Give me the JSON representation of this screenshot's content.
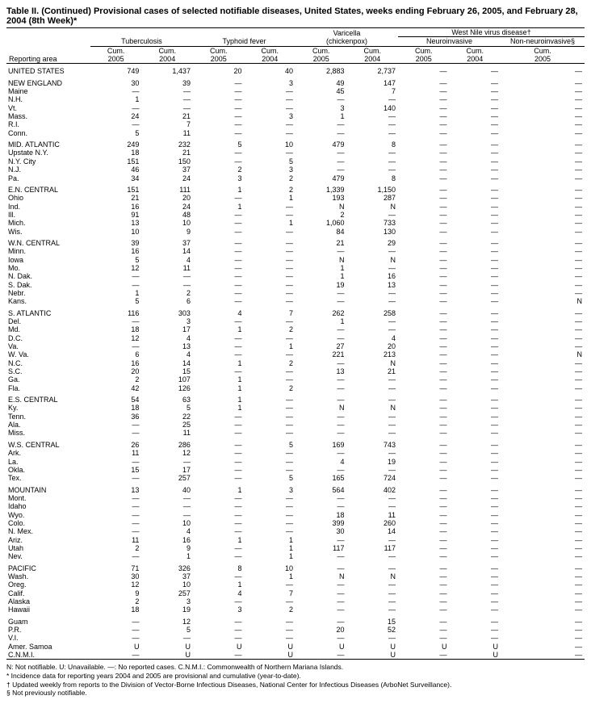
{
  "title": "Table II. (Continued) Provisional cases of selected notifiable diseases, United States, weeks ending February 26, 2005, and February 28, 2004 (8th Week)*",
  "header": {
    "groups": [
      "Tuberculosis",
      "Typhoid fever",
      "Varicella (chickenpox)",
      "West Nile virus disease†"
    ],
    "wnv_sub": [
      "Neuroinvasive",
      "Non-neuroinvasive§"
    ],
    "cols": [
      "Cum. 2005",
      "Cum. 2004",
      "Cum. 2005",
      "Cum. 2004",
      "Cum. 2005",
      "Cum. 2004",
      "Cum. 2005",
      "Cum. 2004",
      "Cum. 2005"
    ],
    "rowhead": "Reporting area"
  },
  "rows": [
    {
      "g": 1,
      "lbl": "UNITED STATES",
      "v": [
        "749",
        "1,437",
        "20",
        "40",
        "2,883",
        "2,737",
        "—",
        "—",
        "—"
      ]
    },
    {
      "g": 1,
      "lbl": "NEW ENGLAND",
      "v": [
        "30",
        "39",
        "—",
        "3",
        "49",
        "147",
        "—",
        "—",
        "—"
      ]
    },
    {
      "lbl": "Maine",
      "v": [
        "—",
        "—",
        "—",
        "—",
        "45",
        "7",
        "—",
        "—",
        "—"
      ]
    },
    {
      "lbl": "N.H.",
      "v": [
        "1",
        "—",
        "—",
        "—",
        "—",
        "—",
        "—",
        "—",
        "—"
      ]
    },
    {
      "lbl": "Vt.",
      "v": [
        "—",
        "—",
        "—",
        "—",
        "3",
        "140",
        "—",
        "—",
        "—"
      ]
    },
    {
      "lbl": "Mass.",
      "v": [
        "24",
        "21",
        "—",
        "3",
        "1",
        "—",
        "—",
        "—",
        "—"
      ]
    },
    {
      "lbl": "R.I.",
      "v": [
        "—",
        "7",
        "—",
        "—",
        "—",
        "—",
        "—",
        "—",
        "—"
      ]
    },
    {
      "lbl": "Conn.",
      "v": [
        "5",
        "11",
        "—",
        "—",
        "—",
        "—",
        "—",
        "—",
        "—"
      ]
    },
    {
      "g": 1,
      "lbl": "MID. ATLANTIC",
      "v": [
        "249",
        "232",
        "5",
        "10",
        "479",
        "8",
        "—",
        "—",
        "—"
      ]
    },
    {
      "lbl": "Upstate N.Y.",
      "v": [
        "18",
        "21",
        "—",
        "—",
        "—",
        "—",
        "—",
        "—",
        "—"
      ]
    },
    {
      "lbl": "N.Y. City",
      "v": [
        "151",
        "150",
        "—",
        "5",
        "—",
        "—",
        "—",
        "—",
        "—"
      ]
    },
    {
      "lbl": "N.J.",
      "v": [
        "46",
        "37",
        "2",
        "3",
        "—",
        "—",
        "—",
        "—",
        "—"
      ]
    },
    {
      "lbl": "Pa.",
      "v": [
        "34",
        "24",
        "3",
        "2",
        "479",
        "8",
        "—",
        "—",
        "—"
      ]
    },
    {
      "g": 1,
      "lbl": "E.N. CENTRAL",
      "v": [
        "151",
        "111",
        "1",
        "2",
        "1,339",
        "1,150",
        "—",
        "—",
        "—"
      ]
    },
    {
      "lbl": "Ohio",
      "v": [
        "21",
        "20",
        "—",
        "1",
        "193",
        "287",
        "—",
        "—",
        "—"
      ]
    },
    {
      "lbl": "Ind.",
      "v": [
        "16",
        "24",
        "1",
        "—",
        "N",
        "N",
        "—",
        "—",
        "—"
      ]
    },
    {
      "lbl": "Ill.",
      "v": [
        "91",
        "48",
        "—",
        "—",
        "2",
        "—",
        "—",
        "—",
        "—"
      ]
    },
    {
      "lbl": "Mich.",
      "v": [
        "13",
        "10",
        "—",
        "1",
        "1,060",
        "733",
        "—",
        "—",
        "—"
      ]
    },
    {
      "lbl": "Wis.",
      "v": [
        "10",
        "9",
        "—",
        "—",
        "84",
        "130",
        "—",
        "—",
        "—"
      ]
    },
    {
      "g": 1,
      "lbl": "W.N. CENTRAL",
      "v": [
        "39",
        "37",
        "—",
        "—",
        "21",
        "29",
        "—",
        "—",
        "—"
      ]
    },
    {
      "lbl": "Minn.",
      "v": [
        "16",
        "14",
        "—",
        "—",
        "—",
        "—",
        "—",
        "—",
        "—"
      ]
    },
    {
      "lbl": "Iowa",
      "v": [
        "5",
        "4",
        "—",
        "—",
        "N",
        "N",
        "—",
        "—",
        "—"
      ]
    },
    {
      "lbl": "Mo.",
      "v": [
        "12",
        "11",
        "—",
        "—",
        "1",
        "—",
        "—",
        "—",
        "—"
      ]
    },
    {
      "lbl": "N. Dak.",
      "v": [
        "—",
        "—",
        "—",
        "—",
        "1",
        "16",
        "—",
        "—",
        "—"
      ]
    },
    {
      "lbl": "S. Dak.",
      "v": [
        "—",
        "—",
        "—",
        "—",
        "19",
        "13",
        "—",
        "—",
        "—"
      ]
    },
    {
      "lbl": "Nebr.",
      "v": [
        "1",
        "2",
        "—",
        "—",
        "—",
        "—",
        "—",
        "—",
        "—"
      ]
    },
    {
      "lbl": "Kans.",
      "v": [
        "5",
        "6",
        "—",
        "—",
        "—",
        "—",
        "—",
        "—",
        "N"
      ]
    },
    {
      "g": 1,
      "lbl": "S. ATLANTIC",
      "v": [
        "116",
        "303",
        "4",
        "7",
        "262",
        "258",
        "—",
        "—",
        "—"
      ]
    },
    {
      "lbl": "Del.",
      "v": [
        "—",
        "3",
        "—",
        "—",
        "1",
        "—",
        "—",
        "—",
        "—"
      ]
    },
    {
      "lbl": "Md.",
      "v": [
        "18",
        "17",
        "1",
        "2",
        "—",
        "—",
        "—",
        "—",
        "—"
      ]
    },
    {
      "lbl": "D.C.",
      "v": [
        "12",
        "4",
        "—",
        "—",
        "—",
        "4",
        "—",
        "—",
        "—"
      ]
    },
    {
      "lbl": "Va.",
      "v": [
        "—",
        "13",
        "—",
        "1",
        "27",
        "20",
        "—",
        "—",
        "—"
      ]
    },
    {
      "lbl": "W. Va.",
      "v": [
        "6",
        "4",
        "—",
        "—",
        "221",
        "213",
        "—",
        "—",
        "N"
      ]
    },
    {
      "lbl": "N.C.",
      "v": [
        "16",
        "14",
        "1",
        "2",
        "—",
        "N",
        "—",
        "—",
        "—"
      ]
    },
    {
      "lbl": "S.C.",
      "v": [
        "20",
        "15",
        "—",
        "—",
        "13",
        "21",
        "—",
        "—",
        "—"
      ]
    },
    {
      "lbl": "Ga.",
      "v": [
        "2",
        "107",
        "1",
        "—",
        "—",
        "—",
        "—",
        "—",
        "—"
      ]
    },
    {
      "lbl": "Fla.",
      "v": [
        "42",
        "126",
        "1",
        "2",
        "—",
        "—",
        "—",
        "—",
        "—"
      ]
    },
    {
      "g": 1,
      "lbl": "E.S. CENTRAL",
      "v": [
        "54",
        "63",
        "1",
        "—",
        "—",
        "—",
        "—",
        "—",
        "—"
      ]
    },
    {
      "lbl": "Ky.",
      "v": [
        "18",
        "5",
        "1",
        "—",
        "N",
        "N",
        "—",
        "—",
        "—"
      ]
    },
    {
      "lbl": "Tenn.",
      "v": [
        "36",
        "22",
        "—",
        "—",
        "—",
        "—",
        "—",
        "—",
        "—"
      ]
    },
    {
      "lbl": "Ala.",
      "v": [
        "—",
        "25",
        "—",
        "—",
        "—",
        "—",
        "—",
        "—",
        "—"
      ]
    },
    {
      "lbl": "Miss.",
      "v": [
        "—",
        "11",
        "—",
        "—",
        "—",
        "—",
        "—",
        "—",
        "—"
      ]
    },
    {
      "g": 1,
      "lbl": "W.S. CENTRAL",
      "v": [
        "26",
        "286",
        "—",
        "5",
        "169",
        "743",
        "—",
        "—",
        "—"
      ]
    },
    {
      "lbl": "Ark.",
      "v": [
        "11",
        "12",
        "—",
        "—",
        "—",
        "—",
        "—",
        "—",
        "—"
      ]
    },
    {
      "lbl": "La.",
      "v": [
        "—",
        "—",
        "—",
        "—",
        "4",
        "19",
        "—",
        "—",
        "—"
      ]
    },
    {
      "lbl": "Okla.",
      "v": [
        "15",
        "17",
        "—",
        "—",
        "—",
        "—",
        "—",
        "—",
        "—"
      ]
    },
    {
      "lbl": "Tex.",
      "v": [
        "—",
        "257",
        "—",
        "5",
        "165",
        "724",
        "—",
        "—",
        "—"
      ]
    },
    {
      "g": 1,
      "lbl": "MOUNTAIN",
      "v": [
        "13",
        "40",
        "1",
        "3",
        "564",
        "402",
        "—",
        "—",
        "—"
      ]
    },
    {
      "lbl": "Mont.",
      "v": [
        "—",
        "—",
        "—",
        "—",
        "—",
        "—",
        "—",
        "—",
        "—"
      ]
    },
    {
      "lbl": "Idaho",
      "v": [
        "—",
        "—",
        "—",
        "—",
        "—",
        "—",
        "—",
        "—",
        "—"
      ]
    },
    {
      "lbl": "Wyo.",
      "v": [
        "—",
        "—",
        "—",
        "—",
        "18",
        "11",
        "—",
        "—",
        "—"
      ]
    },
    {
      "lbl": "Colo.",
      "v": [
        "—",
        "10",
        "—",
        "—",
        "399",
        "260",
        "—",
        "—",
        "—"
      ]
    },
    {
      "lbl": "N. Mex.",
      "v": [
        "—",
        "4",
        "—",
        "—",
        "30",
        "14",
        "—",
        "—",
        "—"
      ]
    },
    {
      "lbl": "Ariz.",
      "v": [
        "11",
        "16",
        "1",
        "1",
        "—",
        "—",
        "—",
        "—",
        "—"
      ]
    },
    {
      "lbl": "Utah",
      "v": [
        "2",
        "9",
        "—",
        "1",
        "117",
        "117",
        "—",
        "—",
        "—"
      ]
    },
    {
      "lbl": "Nev.",
      "v": [
        "—",
        "1",
        "—",
        "1",
        "—",
        "—",
        "—",
        "—",
        "—"
      ]
    },
    {
      "g": 1,
      "lbl": "PACIFIC",
      "v": [
        "71",
        "326",
        "8",
        "10",
        "—",
        "—",
        "—",
        "—",
        "—"
      ]
    },
    {
      "lbl": "Wash.",
      "v": [
        "30",
        "37",
        "—",
        "1",
        "N",
        "N",
        "—",
        "—",
        "—"
      ]
    },
    {
      "lbl": "Oreg.",
      "v": [
        "12",
        "10",
        "1",
        "—",
        "—",
        "—",
        "—",
        "—",
        "—"
      ]
    },
    {
      "lbl": "Calif.",
      "v": [
        "9",
        "257",
        "4",
        "7",
        "—",
        "—",
        "—",
        "—",
        "—"
      ]
    },
    {
      "lbl": "Alaska",
      "v": [
        "2",
        "3",
        "—",
        "—",
        "—",
        "—",
        "—",
        "—",
        "—"
      ]
    },
    {
      "lbl": "Hawaii",
      "v": [
        "18",
        "19",
        "3",
        "2",
        "—",
        "—",
        "—",
        "—",
        "—"
      ]
    },
    {
      "g": 1,
      "lbl": "Guam",
      "v": [
        "—",
        "12",
        "—",
        "—",
        "—",
        "15",
        "—",
        "—",
        "—"
      ]
    },
    {
      "lbl": "P.R.",
      "v": [
        "—",
        "5",
        "—",
        "—",
        "20",
        "52",
        "—",
        "—",
        "—"
      ]
    },
    {
      "lbl": "V.I.",
      "v": [
        "—",
        "—",
        "—",
        "—",
        "—",
        "—",
        "—",
        "—",
        "—"
      ]
    },
    {
      "lbl": "Amer. Samoa",
      "v": [
        "U",
        "U",
        "U",
        "U",
        "U",
        "U",
        "U",
        "U",
        "—"
      ]
    },
    {
      "lbl": "C.N.M.I.",
      "v": [
        "—",
        "U",
        "—",
        "U",
        "—",
        "U",
        "—",
        "U",
        "—"
      ]
    }
  ],
  "footnotes": [
    "N: Not notifiable.        U: Unavailable.        —: No reported cases.        C.N.M.I.: Commonwealth of Northern Mariana Islands.",
    "* Incidence data for reporting years 2004 and 2005 are provisional and cumulative (year-to-date).",
    "† Updated weekly from reports to the Division of Vector-Borne Infectious Diseases, National Center for Infectious Diseases (ArboNet Surveillance).",
    "§ Not previously notifiable."
  ]
}
